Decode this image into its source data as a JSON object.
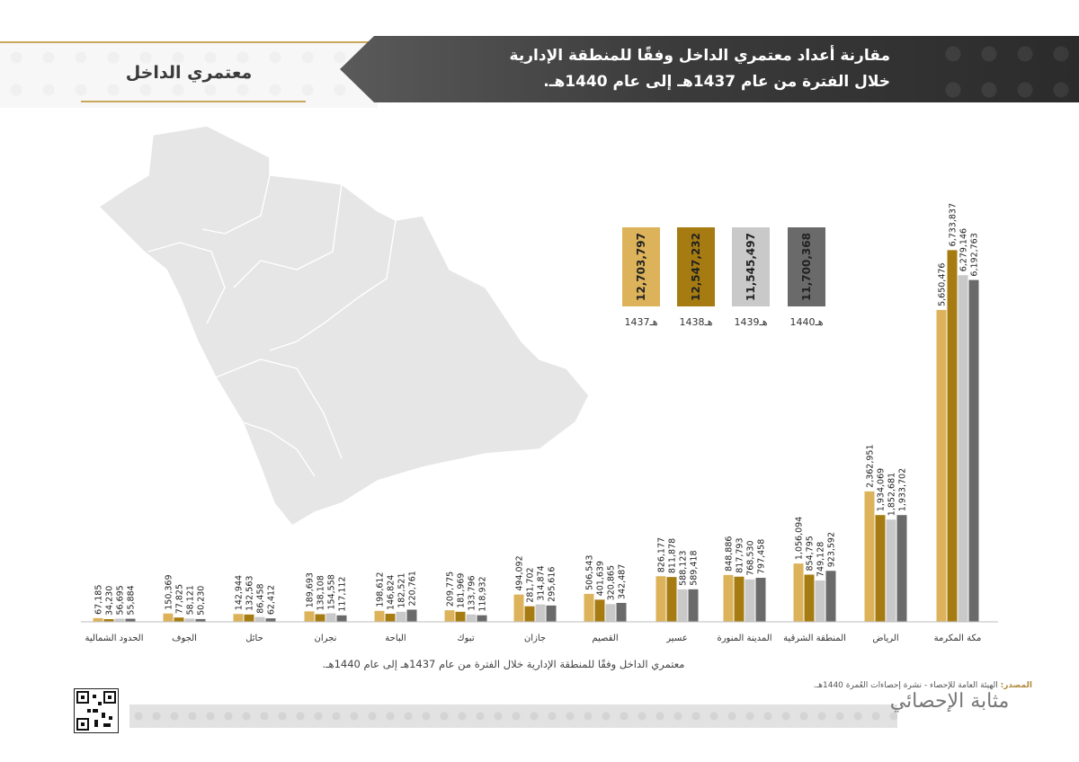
{
  "header": {
    "title_line1": "مقارنة أعداد معتمري الداخل وفقًا للمنطقة الإدارية",
    "title_line2": "خلال الفترة من عام 1437هـ إلى عام 1440هـ."
  },
  "section_label": "معتمري الداخل",
  "footer_note": "معتمري الداخل وفقًا للمنطقة الإدارية خلال الفترة من عام 1437هـ إلى عام 1440هـ.",
  "source": {
    "label": "المصدر:",
    "text": "الهيئة العامة للإحصاء - نشرة إحصاءات العُمرة 1440هـ."
  },
  "logo_text": "مثابة الإحصائي",
  "colors": {
    "s1437": "#dcb35a",
    "s1438": "#a67c12",
    "s1439": "#c9c9c9",
    "s1440": "#6a6a6a",
    "map_fill": "#e6e6e6"
  },
  "chart_data": {
    "type": "bar",
    "categories": [
      "مكة المكرمة",
      "الرياض",
      "المنطقة الشرقية",
      "المدينة المنورة",
      "عسير",
      "القصيم",
      "جازان",
      "تبوك",
      "الباحة",
      "نجران",
      "حائل",
      "الجوف",
      "الحدود الشمالية"
    ],
    "series": [
      {
        "name": "1437هـ",
        "values": [
          5650476,
          2362951,
          1056094,
          848886,
          826177,
          506543,
          494092,
          209775,
          198612,
          189693,
          142944,
          150369,
          67185
        ]
      },
      {
        "name": "1438هـ",
        "values": [
          6733837,
          1934069,
          854795,
          817793,
          811878,
          401639,
          281702,
          181969,
          146824,
          138108,
          132563,
          77825,
          34230
        ]
      },
      {
        "name": "1439هـ",
        "values": [
          6279146,
          1852681,
          749128,
          768530,
          588123,
          320865,
          314874,
          133796,
          182521,
          154558,
          86458,
          58121,
          56695
        ]
      },
      {
        "name": "1440هـ",
        "values": [
          6192763,
          1933702,
          923592,
          797458,
          589418,
          342487,
          295616,
          118932,
          220761,
          117112,
          62412,
          50230,
          55884
        ]
      }
    ],
    "labels": [
      [
        "5,650,476",
        "6,733,837",
        "6,279,146",
        "6,192,763"
      ],
      [
        "2,362,951",
        "1,934,069",
        "1,852,681",
        "1,933,702"
      ],
      [
        "1,056,094",
        "854,795",
        "749,128",
        "923,592"
      ],
      [
        "848,886",
        "817,793",
        "768,530",
        "797,458"
      ],
      [
        "826,177",
        "811,878",
        "588,123",
        "589,418"
      ],
      [
        "506,543",
        "401,639",
        "320,865",
        "342,487"
      ],
      [
        "494,092",
        "281,702",
        "314,874",
        "295,616"
      ],
      [
        "209,775",
        "181,969",
        "133,796",
        "118,932"
      ],
      [
        "198,612",
        "146,824",
        "182,521",
        "220,761"
      ],
      [
        "189,693",
        "138,108",
        "154,558",
        "117,112"
      ],
      [
        "142,944",
        "132,563",
        "86,458",
        "62,412"
      ],
      [
        "150,369",
        "77,825",
        "58,121",
        "50,230"
      ],
      [
        "67,185",
        "34,230",
        "56,695",
        "55,884"
      ]
    ],
    "totals": [
      {
        "year": "1437هـ",
        "value": 12703797,
        "label": "12,703,797"
      },
      {
        "year": "1438هـ",
        "value": 12547232,
        "label": "12,547,232"
      },
      {
        "year": "1439هـ",
        "value": 11545497,
        "label": "11,545,497"
      },
      {
        "year": "1440هـ",
        "value": 11700368,
        "label": "11,700,368"
      }
    ],
    "title": "",
    "xlabel": "",
    "ylabel": ""
  }
}
